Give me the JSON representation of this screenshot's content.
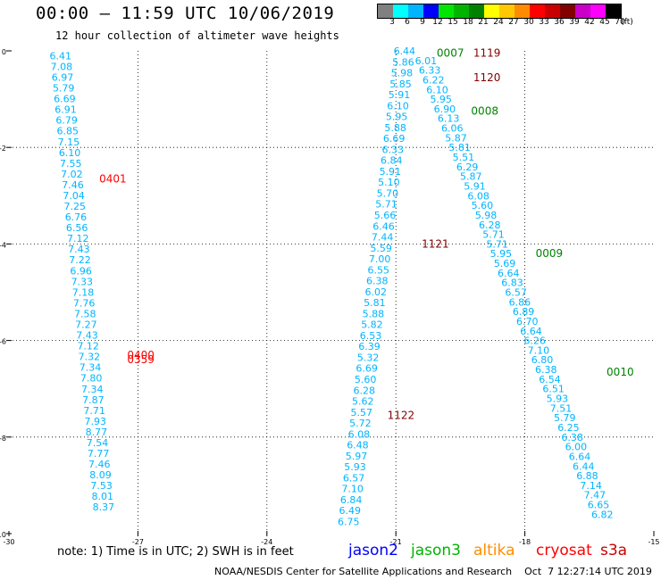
{
  "header": {
    "title": "00:00 – 11:59 UTC 10/06/2019",
    "subtitle": "12 hour collection of altimeter wave heights"
  },
  "colorbar": {
    "colors": [
      "#808080",
      "#00ffff",
      "#00b4ff",
      "#0000ff",
      "#00e600",
      "#00b400",
      "#008200",
      "#ffff00",
      "#ffc800",
      "#ff8c00",
      "#ff0000",
      "#c80000",
      "#820000",
      "#c800c8",
      "#ff00ff",
      "#000000"
    ],
    "labels": [
      "3",
      "6",
      "9",
      "12",
      "15",
      "18",
      "21",
      "24",
      "27",
      "30",
      "33",
      "36",
      "39",
      "42",
      "45",
      "70",
      "(ft)"
    ]
  },
  "note": "note: 1) Time is in UTC; 2) SWH is in feet",
  "legend": [
    {
      "name": "jason2",
      "color": "#0000ff"
    },
    {
      "name": "jason3",
      "color": "#00b400"
    },
    {
      "name": "altika",
      "color": "#ff8c00"
    },
    {
      "name": "cryosat",
      "color": "#ff0000"
    },
    {
      "name": "s3a",
      "color": "#c80000"
    }
  ],
  "footer": "NOAA/NESDIS Center for Satellite Applications and Research    Oct  7 12:27:14 UTC 2019",
  "chart_data": {
    "type": "scatter",
    "title": "00:00 – 11:59 UTC 10/06/2019",
    "xlim": [
      -30,
      -15
    ],
    "ylim": [
      -10,
      0
    ],
    "xticks": [
      -30,
      -27,
      -24,
      -21,
      -18,
      -15
    ],
    "yticks": [
      0,
      -2,
      -4,
      -6,
      -8,
      -10
    ],
    "xtick_labels": [
      "-30",
      "-27",
      "-24",
      "-21",
      "-18",
      "-15"
    ],
    "ytick_labels": [
      "0",
      "-2",
      "-4",
      "-6",
      "-8",
      "-10"
    ],
    "grid": "dotted",
    "value_color": "#00b4ff",
    "tracks": [
      {
        "name": "track_a",
        "x_start": -28.8,
        "x_end": -27.8,
        "y_start": -0.1,
        "y_end": -9.45,
        "values": [
          "6.41",
          "7.08",
          "6.97",
          "5.79",
          "6.69",
          "6.91",
          "6.79",
          "6.85",
          "7.15",
          "6.10",
          "7.55",
          "7.02",
          "7.46",
          "7.04",
          "7.25",
          "6.76",
          "6.56",
          "7.12",
          "7.43",
          "7.22",
          "6.96",
          "7.33",
          "7.18",
          "7.76",
          "7.58",
          "7.27",
          "7.43",
          "7.12",
          "7.32",
          "7.34",
          "7.80",
          "7.34",
          "7.87",
          "7.71",
          "7.93",
          "8.77",
          "7.54",
          "7.77",
          "7.46",
          "8.09",
          "7.53",
          "8.01",
          "8.37"
        ]
      },
      {
        "name": "track_b",
        "x_start": -20.8,
        "x_end": -22.1,
        "y_start": 0.0,
        "y_end": -9.75,
        "values": [
          "6.44",
          "5.86",
          "5.98",
          "5.85",
          "5.91",
          "6.10",
          "5.95",
          "5.88",
          "6.69",
          "6.33",
          "6.84",
          "5.91",
          "5.10",
          "5.70",
          "5.71",
          "5.66",
          "6.46",
          "7.44",
          "5.59",
          "7.00",
          "6.55",
          "6.38",
          "6.02",
          "5.81",
          "5.88",
          "5.82",
          "6.53",
          "6.39",
          "5.32",
          "6.69",
          "5.60",
          "6.28",
          "5.62",
          "5.57",
          "5.72",
          "6.08",
          "6.48",
          "5.97",
          "5.93",
          "6.57",
          "7.10",
          "6.84",
          "6.49",
          "6.75"
        ]
      },
      {
        "name": "track_c",
        "x_start": -20.3,
        "x_end": -16.2,
        "y_start": -0.2,
        "y_end": -9.6,
        "values": [
          "6.01",
          "6.33",
          "6.22",
          "6.10",
          "5.95",
          "6.90",
          "6.13",
          "6.06",
          "5.87",
          "5.81",
          "5.51",
          "6.29",
          "5.87",
          "5.91",
          "6.08",
          "5.60",
          "5.98",
          "6.28",
          "5.71",
          "5.71",
          "5.95",
          "5.69",
          "6.64",
          "6.83",
          "6.57",
          "6.86",
          "6.89",
          "6.70",
          "6.64",
          "6.26",
          "7.10",
          "6.80",
          "6.38",
          "6.54",
          "6.51",
          "5.93",
          "7.51",
          "5.79",
          "6.25",
          "6.38",
          "6.00",
          "6.64",
          "6.44",
          "6.88",
          "7.14",
          "7.47",
          "6.65",
          "6.82"
        ]
      }
    ],
    "time_labels": [
      {
        "text": "0007",
        "x": -20.05,
        "y": -0.05,
        "color": "#008200"
      },
      {
        "text": "1119",
        "x": -19.2,
        "y": -0.05,
        "color": "#820000"
      },
      {
        "text": "1120",
        "x": -19.2,
        "y": -0.55,
        "color": "#820000"
      },
      {
        "text": "0008",
        "x": -19.25,
        "y": -1.25,
        "color": "#008200"
      },
      {
        "text": "0401",
        "x": -27.9,
        "y": -2.65,
        "color": "#ff0000"
      },
      {
        "text": "1121",
        "x": -20.4,
        "y": -4.0,
        "color": "#820000"
      },
      {
        "text": "0009",
        "x": -17.75,
        "y": -4.2,
        "color": "#008200"
      },
      {
        "text": "0400",
        "x": -27.25,
        "y": -6.3,
        "color": "#ff0000"
      },
      {
        "text": "0359",
        "x": -27.25,
        "y": -6.4,
        "color": "#ff0000"
      },
      {
        "text": "0010",
        "x": -16.1,
        "y": -6.65,
        "color": "#008200"
      },
      {
        "text": "1122",
        "x": -21.2,
        "y": -7.55,
        "color": "#820000"
      }
    ]
  }
}
